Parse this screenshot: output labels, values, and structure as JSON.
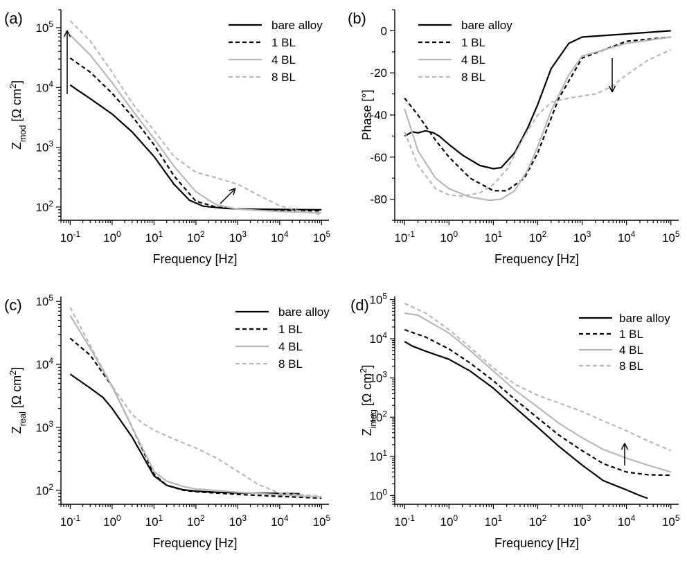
{
  "colors": {
    "black": "#000000",
    "gray_light": "#b8b8b8"
  },
  "chart_data": [
    {
      "id": "a",
      "panel_label": "(a)",
      "type": "line",
      "xscale": "log",
      "yscale": "log",
      "xlim": [
        0.06,
        150000
      ],
      "ylim": [
        60,
        200000
      ],
      "xticks": [
        0.1,
        1,
        10,
        100,
        1000,
        10000,
        100000
      ],
      "xtick_labels": [
        [
          "10",
          "-1"
        ],
        [
          "10",
          "0"
        ],
        [
          "10",
          "1"
        ],
        [
          "10",
          "2"
        ],
        [
          "10",
          "3"
        ],
        [
          "10",
          "4"
        ],
        [
          "10",
          "5"
        ]
      ],
      "yticks": [
        100,
        1000,
        10000,
        100000
      ],
      "ytick_labels": [
        [
          "10",
          "2"
        ],
        [
          "10",
          "3"
        ],
        [
          "10",
          "4"
        ],
        [
          "10",
          "5"
        ]
      ],
      "xlabel": "Frequency [Hz]",
      "ylabel": [
        [
          "t",
          "Z"
        ],
        [
          "sub",
          "mod"
        ],
        [
          "t",
          " [Ω cm"
        ],
        [
          "sup",
          "2"
        ],
        [
          "t",
          "]"
        ]
      ],
      "legend": {
        "position": "top-right"
      },
      "series": [
        {
          "name": "bare alloy",
          "style": "solid",
          "color": "#000000",
          "x": [
            0.1,
            0.15,
            0.3,
            1,
            3,
            10,
            30,
            70,
            150,
            500,
            1000,
            10000,
            100000
          ],
          "y": [
            11000,
            9000,
            6500,
            3600,
            1800,
            700,
            240,
            130,
            103,
            95,
            93,
            91,
            90
          ]
        },
        {
          "name": "1 BL",
          "style": "dashed",
          "color": "#000000",
          "x": [
            0.1,
            0.3,
            1,
            3,
            10,
            30,
            100,
            300,
            1000,
            10000,
            100000
          ],
          "y": [
            31000,
            18000,
            8000,
            3300,
            1100,
            330,
            125,
            100,
            93,
            88,
            86
          ]
        },
        {
          "name": "4 BL",
          "style": "solid",
          "color": "#b8b8b8",
          "x": [
            0.1,
            0.3,
            1,
            3,
            10,
            30,
            100,
            300,
            1000,
            10000,
            100000
          ],
          "y": [
            75000,
            35000,
            12000,
            4200,
            1400,
            480,
            180,
            110,
            92,
            84,
            80
          ]
        },
        {
          "name": "8 BL",
          "style": "dashed",
          "color": "#b8b8b8",
          "x": [
            0.1,
            0.3,
            1,
            3,
            10,
            30,
            100,
            300,
            1000,
            3000,
            10000,
            30000,
            100000
          ],
          "y": [
            130000,
            60000,
            18000,
            5500,
            1900,
            700,
            380,
            310,
            240,
            160,
            105,
            85,
            75
          ]
        }
      ]
    },
    {
      "id": "b",
      "panel_label": "(b)",
      "type": "line",
      "xscale": "log",
      "yscale": "linear",
      "xlim": [
        0.06,
        150000
      ],
      "ylim": [
        -90,
        10
      ],
      "xticks": [
        0.1,
        1,
        10,
        100,
        1000,
        10000,
        100000
      ],
      "xtick_labels": [
        [
          "10",
          "-1"
        ],
        [
          "10",
          "0"
        ],
        [
          "10",
          "1"
        ],
        [
          "10",
          "2"
        ],
        [
          "10",
          "3"
        ],
        [
          "10",
          "4"
        ],
        [
          "10",
          "5"
        ]
      ],
      "yticks": [
        0,
        -20,
        -40,
        -60,
        -80
      ],
      "ytick_labels": [
        [
          "0"
        ],
        [
          "-20"
        ],
        [
          "-40"
        ],
        [
          "-60"
        ],
        [
          "-80"
        ]
      ],
      "xlabel": "Frequency [Hz]",
      "ylabel": [
        [
          "t",
          "Phase [°]"
        ]
      ],
      "legend": {
        "position": "top-left"
      },
      "series": [
        {
          "name": "bare alloy",
          "style": "solid",
          "color": "#000000",
          "x": [
            0.1,
            0.15,
            0.2,
            0.3,
            0.45,
            0.6,
            1,
            2,
            5,
            10,
            15,
            30,
            60,
            100,
            200,
            500,
            1000,
            10000,
            100000
          ],
          "y": [
            -50,
            -48,
            -48.5,
            -47.5,
            -48.5,
            -50,
            -54,
            -59,
            -64,
            -65.5,
            -65,
            -58,
            -46,
            -35,
            -18,
            -6,
            -3,
            -1.5,
            0
          ]
        },
        {
          "name": "1 BL",
          "style": "dashed",
          "color": "#000000",
          "x": [
            0.1,
            0.2,
            0.5,
            1,
            3,
            10,
            20,
            50,
            100,
            300,
            1000,
            10000,
            100000
          ],
          "y": [
            -32,
            -40,
            -52,
            -60,
            -70,
            -76,
            -76,
            -70,
            -58,
            -32,
            -13,
            -5,
            -3
          ]
        },
        {
          "name": "4 BL",
          "style": "solid",
          "color": "#b8b8b8",
          "x": [
            0.1,
            0.2,
            0.5,
            1,
            3,
            8,
            15,
            30,
            60,
            100,
            200,
            500,
            1000,
            10000,
            100000
          ],
          "y": [
            -37,
            -57,
            -70,
            -75,
            -79,
            -80.5,
            -80,
            -76,
            -66,
            -55,
            -38,
            -21,
            -12,
            -6,
            -3
          ]
        },
        {
          "name": "8 BL",
          "style": "dashed",
          "color": "#b8b8b8",
          "x": [
            0.1,
            0.2,
            0.5,
            1,
            2,
            5,
            10,
            20,
            50,
            100,
            200,
            500,
            1000,
            2000,
            3000,
            5000,
            10000,
            30000,
            100000
          ],
          "y": [
            -48,
            -64,
            -75,
            -78,
            -78.5,
            -77,
            -73,
            -66,
            -50,
            -40,
            -34,
            -32,
            -31,
            -30,
            -28.5,
            -26,
            -21,
            -14,
            -9
          ]
        }
      ]
    },
    {
      "id": "c",
      "panel_label": "(c)",
      "type": "line",
      "xscale": "log",
      "yscale": "log",
      "xlim": [
        0.06,
        150000
      ],
      "ylim": [
        60,
        120000
      ],
      "xticks": [
        0.1,
        1,
        10,
        100,
        1000,
        10000,
        100000
      ],
      "xtick_labels": [
        [
          "10",
          "-1"
        ],
        [
          "10",
          "0"
        ],
        [
          "10",
          "1"
        ],
        [
          "10",
          "2"
        ],
        [
          "10",
          "3"
        ],
        [
          "10",
          "4"
        ],
        [
          "10",
          "5"
        ]
      ],
      "yticks": [
        100,
        1000,
        10000,
        100000
      ],
      "ytick_labels": [
        [
          "10",
          "2"
        ],
        [
          "10",
          "3"
        ],
        [
          "10",
          "4"
        ],
        [
          "10",
          "5"
        ]
      ],
      "xlabel": "Frequency [Hz]",
      "ylabel": [
        [
          "t",
          "Z"
        ],
        [
          "sub",
          "real"
        ],
        [
          "t",
          " [Ω cm"
        ],
        [
          "sup",
          "2"
        ],
        [
          "t",
          "]"
        ]
      ],
      "legend": {
        "position": "top-right"
      },
      "series": [
        {
          "name": "bare alloy",
          "style": "solid",
          "color": "#000000",
          "x": [
            0.1,
            0.15,
            0.3,
            0.6,
            1,
            3,
            10,
            20,
            50,
            100,
            300,
            1000,
            10000,
            30000
          ],
          "y": [
            7000,
            5800,
            4200,
            3000,
            2000,
            700,
            170,
            120,
            102,
            97,
            93,
            91,
            89,
            88
          ]
        },
        {
          "name": "1 BL",
          "style": "dashed",
          "color": "#000000",
          "x": [
            0.1,
            0.3,
            1,
            3,
            10,
            20,
            50,
            100,
            1000,
            10000,
            100000
          ],
          "y": [
            26000,
            14000,
            4500,
            1000,
            180,
            120,
            100,
            95,
            86,
            80,
            75
          ]
        },
        {
          "name": "4 BL",
          "style": "solid",
          "color": "#b8b8b8",
          "x": [
            0.1,
            0.3,
            1,
            3,
            10,
            20,
            50,
            100,
            1000,
            10000,
            100000
          ],
          "y": [
            60000,
            18000,
            4500,
            1000,
            200,
            140,
            115,
            105,
            93,
            85,
            78
          ]
        },
        {
          "name": "8 BL",
          "style": "dashed",
          "color": "#b8b8b8",
          "x": [
            0.1,
            0.3,
            1,
            3,
            5,
            10,
            30,
            100,
            300,
            1000,
            3000,
            10000,
            100000
          ],
          "y": [
            80000,
            20000,
            4500,
            1600,
            1200,
            900,
            650,
            470,
            330,
            200,
            125,
            90,
            80
          ]
        }
      ]
    },
    {
      "id": "d",
      "panel_label": "(d)",
      "type": "line",
      "xscale": "log",
      "yscale": "log",
      "xlim": [
        0.06,
        150000
      ],
      "ylim": [
        0.6,
        120000
      ],
      "xticks": [
        0.1,
        1,
        10,
        100,
        1000,
        10000,
        100000
      ],
      "xtick_labels": [
        [
          "10",
          "-1"
        ],
        [
          "10",
          "0"
        ],
        [
          "10",
          "1"
        ],
        [
          "10",
          "2"
        ],
        [
          "10",
          "3"
        ],
        [
          "10",
          "4"
        ],
        [
          "10",
          "5"
        ]
      ],
      "yticks": [
        1,
        10,
        100,
        1000,
        10000,
        100000
      ],
      "ytick_labels": [
        [
          "10",
          "0"
        ],
        [
          "10",
          "1"
        ],
        [
          "10",
          "2"
        ],
        [
          "10",
          "3"
        ],
        [
          "10",
          "4"
        ],
        [
          "10",
          "5"
        ]
      ],
      "xlabel": "Frequency [Hz]",
      "ylabel": [
        [
          "t",
          "Z"
        ],
        [
          "sub",
          "imag"
        ],
        [
          "t",
          " [Ω cm"
        ],
        [
          "sup",
          "2"
        ],
        [
          "t",
          "]"
        ]
      ],
      "legend": {
        "position": "top-right"
      },
      "series": [
        {
          "name": "bare alloy",
          "style": "solid",
          "color": "#000000",
          "x": [
            0.1,
            0.15,
            0.3,
            1,
            3,
            10,
            30,
            100,
            300,
            1000,
            3000,
            10000,
            20000,
            30000
          ],
          "y": [
            8500,
            6500,
            4800,
            3000,
            1500,
            550,
            180,
            55,
            18,
            6,
            2.4,
            1.4,
            1.0,
            0.85
          ]
        },
        {
          "name": "1 BL",
          "style": "dashed",
          "color": "#000000",
          "x": [
            0.1,
            0.3,
            1,
            3,
            10,
            30,
            100,
            300,
            1000,
            3000,
            10000,
            30000,
            100000
          ],
          "y": [
            17000,
            11000,
            5500,
            2400,
            850,
            290,
            95,
            35,
            14,
            6.5,
            4.0,
            3.4,
            3.3
          ]
        },
        {
          "name": "4 BL",
          "style": "solid",
          "color": "#b8b8b8",
          "x": [
            0.1,
            0.2,
            0.5,
            1,
            3,
            10,
            30,
            100,
            300,
            1000,
            3000,
            10000,
            30000,
            100000
          ],
          "y": [
            45000,
            40000,
            22000,
            14000,
            5000,
            1500,
            500,
            180,
            70,
            30,
            15,
            9,
            6,
            4
          ]
        },
        {
          "name": "8 BL",
          "style": "dashed",
          "color": "#b8b8b8",
          "x": [
            0.1,
            0.3,
            1,
            3,
            10,
            30,
            100,
            300,
            1000,
            3000,
            10000,
            30000,
            100000
          ],
          "y": [
            80000,
            45000,
            17000,
            6000,
            1800,
            700,
            360,
            230,
            140,
            80,
            45,
            25,
            14
          ]
        }
      ]
    }
  ]
}
